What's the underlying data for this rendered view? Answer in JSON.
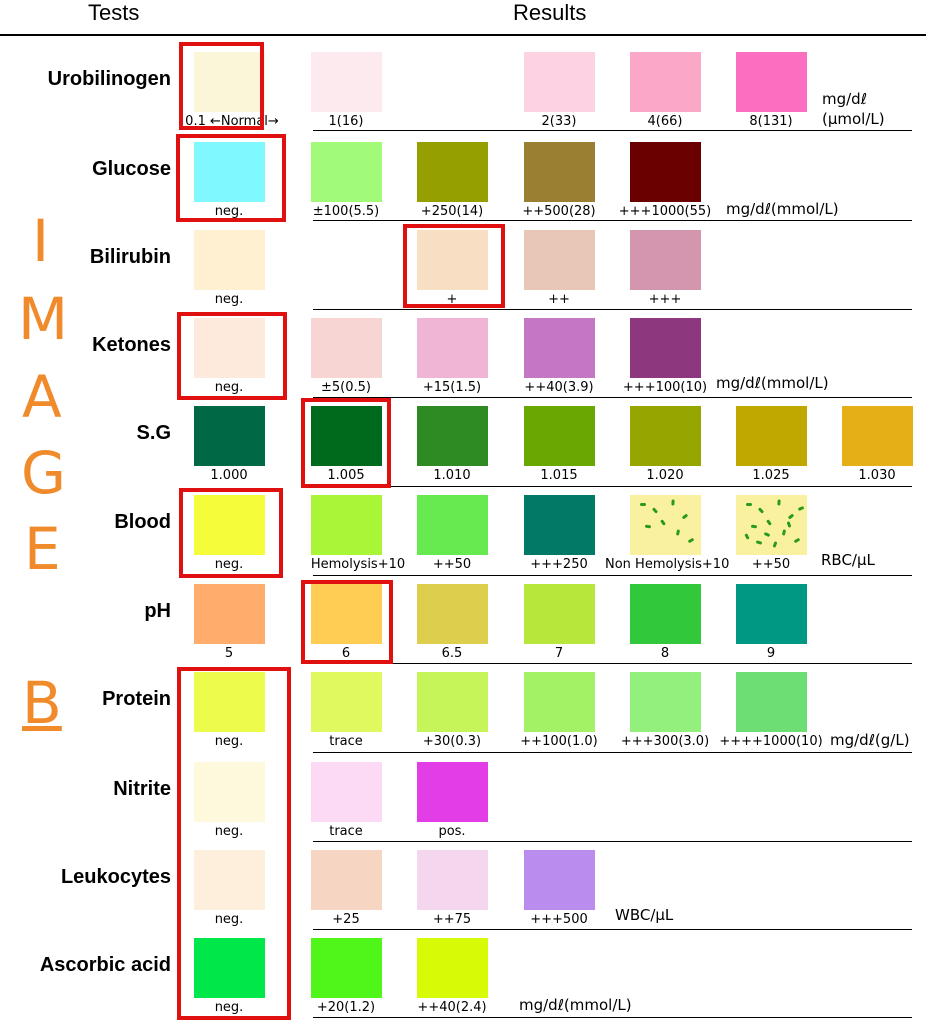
{
  "header": {
    "tests": "Tests",
    "results": "Results"
  },
  "side_letters": [
    "I",
    "M",
    "A",
    "G",
    "E"
  ],
  "side_b": "B",
  "rows": [
    {
      "name": "Urobilinogen",
      "unit": "mg/dℓ",
      "unit2": "(μmol/L)",
      "swatches": [
        {
          "color": "#FCF6D8",
          "label": "0.1 ←Normal→"
        },
        {
          "color": "#FDEAEE",
          "label": "1(16)"
        },
        {
          "color": "#FDD3E3",
          "label": "2(33)"
        },
        {
          "color": "#FBA8C8",
          "label": "4(66)"
        },
        {
          "color": "#FB6EC0",
          "label": "8(131)"
        }
      ]
    },
    {
      "name": "Glucose",
      "unit": "mg/dℓ(mmol/L)",
      "swatches": [
        {
          "color": "#80F8FF",
          "label": "neg."
        },
        {
          "color": "#A1FB78",
          "label": "±100(5.5)"
        },
        {
          "color": "#959F00",
          "label": "+250(14)"
        },
        {
          "color": "#9A7F33",
          "label": "++500(28)"
        },
        {
          "color": "#6A0000",
          "label": "+++1000(55)"
        }
      ]
    },
    {
      "name": "Bilirubin",
      "unit": "",
      "swatches": [
        {
          "color": "#FEF0D0",
          "label": "neg."
        },
        {
          "color": "#F8DFC4",
          "label": "+"
        },
        {
          "color": "#E8C6B8",
          "label": "++"
        },
        {
          "color": "#D496AE",
          "label": "+++"
        }
      ]
    },
    {
      "name": "Ketones",
      "unit": "mg/dℓ(mmol/L)",
      "swatches": [
        {
          "color": "#FDEADC",
          "label": "neg."
        },
        {
          "color": "#F6D5D3",
          "label": "±5(0.5)"
        },
        {
          "color": "#F0B5D5",
          "label": "+15(1.5)"
        },
        {
          "color": "#C576C4",
          "label": "++40(3.9)"
        },
        {
          "color": "#8C377E",
          "label": "+++100(10)"
        }
      ]
    },
    {
      "name": "S.G",
      "unit": "",
      "swatches": [
        {
          "color": "#006845",
          "label": "1.000"
        },
        {
          "color": "#006A1C",
          "label": "1.005"
        },
        {
          "color": "#2E8A22",
          "label": "1.010"
        },
        {
          "color": "#6AA703",
          "label": "1.015"
        },
        {
          "color": "#96A500",
          "label": "1.020"
        },
        {
          "color": "#C1A800",
          "label": "1.025"
        },
        {
          "color": "#E5AF17",
          "label": "1.030"
        }
      ]
    },
    {
      "name": "Blood",
      "unit": "RBC/μL",
      "swatches": [
        {
          "color": "#F5FD3A",
          "label": "neg."
        },
        {
          "color": "#A9F538",
          "label": "Hemolysis+10"
        },
        {
          "color": "#66EA50",
          "label": "++50"
        },
        {
          "color": "#007A66",
          "label": "+++250"
        },
        {
          "color": "#FAF1A0",
          "label": "Non Hemolysis+10"
        },
        {
          "color": "#FAF1A0",
          "label": "++50"
        }
      ]
    },
    {
      "name": "pH",
      "unit": "",
      "swatches": [
        {
          "color": "#FFAC6C",
          "label": "5"
        },
        {
          "color": "#FFCD54",
          "label": "6"
        },
        {
          "color": "#DECE4E",
          "label": "6.5"
        },
        {
          "color": "#B6E73A",
          "label": "7"
        },
        {
          "color": "#32C83C",
          "label": "8"
        },
        {
          "color": "#009783",
          "label": "9"
        }
      ]
    },
    {
      "name": "Protein",
      "unit": "mg/dℓ(g/L)",
      "swatches": [
        {
          "color": "#EDFC4A",
          "label": "neg."
        },
        {
          "color": "#DFF95E",
          "label": "trace"
        },
        {
          "color": "#C6F55A",
          "label": "+30(0.3)"
        },
        {
          "color": "#A3F266",
          "label": "++100(1.0)"
        },
        {
          "color": "#94F07C",
          "label": "+++300(3.0)"
        },
        {
          "color": "#6CDE74",
          "label": "++++1000(10)"
        }
      ]
    },
    {
      "name": "Nitrite",
      "unit": "",
      "swatches": [
        {
          "color": "#FEF8DC",
          "label": "neg."
        },
        {
          "color": "#FCDAF6",
          "label": "trace"
        },
        {
          "color": "#E33DE8",
          "label": "pos."
        }
      ]
    },
    {
      "name": "Leukocytes",
      "unit": "WBC/μL",
      "swatches": [
        {
          "color": "#FEEEDC",
          "label": "neg."
        },
        {
          "color": "#F6D6C2",
          "label": "+25"
        },
        {
          "color": "#F4D6EE",
          "label": "++75"
        },
        {
          "color": "#B98CEE",
          "label": "+++500"
        }
      ]
    },
    {
      "name": "Ascorbic acid",
      "unit": "mg/dℓ(mmol/L)",
      "swatches": [
        {
          "color": "#00E74A",
          "label": "neg."
        },
        {
          "color": "#50F51A",
          "label": "+20(1.2)"
        },
        {
          "color": "#D7FA06",
          "label": "++40(2.4)"
        }
      ]
    }
  ],
  "highlight_color": "#E01010",
  "side_color": "#F08A2A"
}
